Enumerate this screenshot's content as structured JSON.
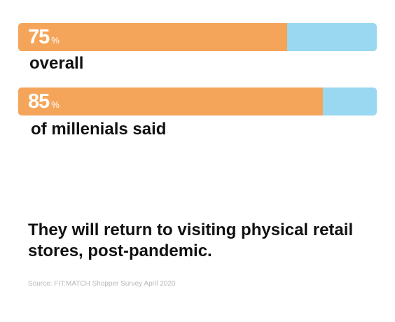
{
  "chart_data": {
    "type": "bar",
    "orientation": "horizontal",
    "categories": [
      "overall",
      "of millenials said"
    ],
    "values": [
      75,
      85
    ],
    "unit": "%",
    "xlim": [
      0,
      100
    ],
    "grid": false,
    "legend": "none",
    "colors": {
      "fill": "#F5A55A",
      "track": "#99D8F0"
    }
  },
  "headline": "They will return to visiting physical retail stores, post-pandemic.",
  "source": "Source: FIT:MATCH Shopper Survey April 2020"
}
